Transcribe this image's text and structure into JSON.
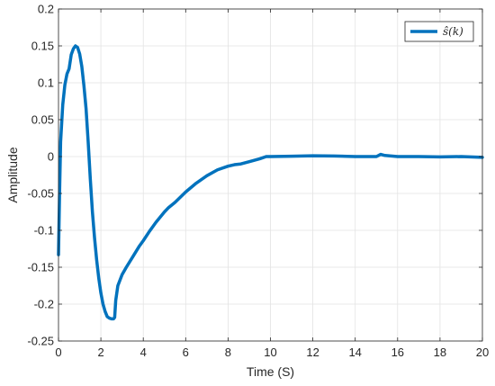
{
  "chart_data": {
    "type": "line",
    "title": "",
    "xlabel": "Time (S)",
    "ylabel": "Amplitude",
    "xlim": [
      0,
      20
    ],
    "ylim": [
      -0.25,
      0.2
    ],
    "xticks": [
      0,
      2,
      4,
      6,
      8,
      10,
      12,
      14,
      16,
      18,
      20
    ],
    "yticks": [
      -0.25,
      -0.2,
      -0.15,
      -0.1,
      -0.05,
      0,
      0.05,
      0.1,
      0.15,
      0.2
    ],
    "xtick_labels": [
      "0",
      "2",
      "4",
      "6",
      "8",
      "10",
      "12",
      "14",
      "16",
      "18",
      "20"
    ],
    "ytick_labels": [
      "-0.25",
      "-0.2",
      "-0.15",
      "-0.1",
      "-0.05",
      "0",
      "0.05",
      "0.1",
      "0.15",
      "0.2"
    ],
    "grid": true,
    "legend_position": "top-right",
    "series": [
      {
        "name": "ŝ(k)",
        "color": "#0072BD",
        "x": [
          0,
          0.05,
          0.1,
          0.2,
          0.3,
          0.4,
          0.5,
          0.6,
          0.7,
          0.8,
          0.9,
          1.0,
          1.1,
          1.2,
          1.3,
          1.4,
          1.5,
          1.6,
          1.7,
          1.8,
          1.9,
          2.0,
          2.1,
          2.2,
          2.3,
          2.4,
          2.5,
          2.6,
          2.65,
          2.7,
          2.8,
          3.0,
          3.2,
          3.5,
          3.8,
          4.0,
          4.3,
          4.6,
          5.0,
          5.2,
          5.5,
          6.0,
          6.5,
          7.0,
          7.5,
          8.0,
          8.3,
          8.6,
          9.0,
          9.5,
          9.8,
          10.0,
          11.0,
          12.0,
          13.0,
          14.0,
          15.0,
          15.2,
          15.4,
          16.0,
          17.0,
          18.0,
          19.0,
          20.0
        ],
        "y": [
          -0.133,
          -0.05,
          0.02,
          0.07,
          0.097,
          0.112,
          0.119,
          0.138,
          0.146,
          0.15,
          0.148,
          0.139,
          0.122,
          0.096,
          0.065,
          0.02,
          -0.03,
          -0.075,
          -0.11,
          -0.14,
          -0.165,
          -0.185,
          -0.2,
          -0.21,
          -0.217,
          -0.219,
          -0.22,
          -0.22,
          -0.218,
          -0.195,
          -0.175,
          -0.16,
          -0.15,
          -0.136,
          -0.122,
          -0.114,
          -0.101,
          -0.089,
          -0.075,
          -0.069,
          -0.062,
          -0.048,
          -0.036,
          -0.026,
          -0.018,
          -0.013,
          -0.011,
          -0.01,
          -0.007,
          -0.003,
          0.0,
          0.0,
          0.0005,
          0.001,
          0.0008,
          0.0,
          0.0,
          0.003,
          0.0015,
          0.0,
          0.0,
          -0.0005,
          0.0,
          -0.001
        ]
      }
    ]
  }
}
